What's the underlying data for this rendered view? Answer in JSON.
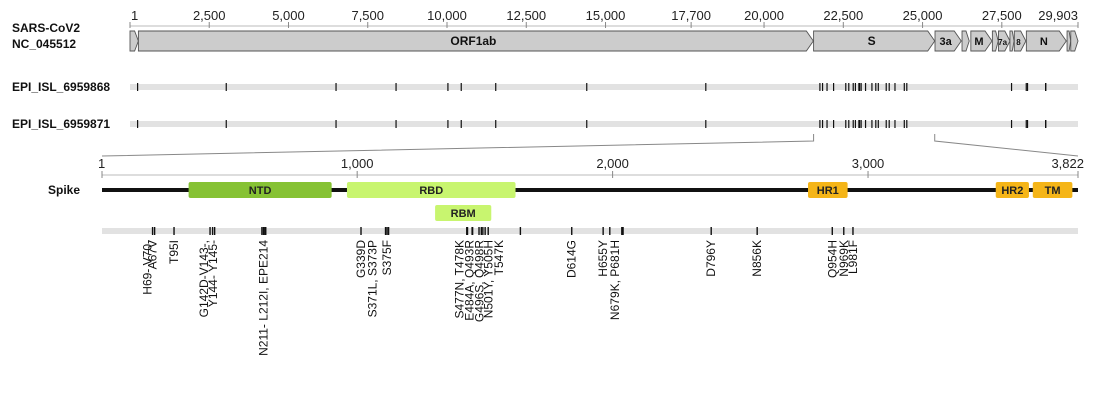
{
  "genome": {
    "labels": [
      "SARS-CoV2",
      "NC_045512"
    ],
    "ticks": [
      {
        "pos": 1,
        "label": "1"
      },
      {
        "pos": 2500,
        "label": "2,500"
      },
      {
        "pos": 5000,
        "label": "5,000"
      },
      {
        "pos": 7500,
        "label": "7,500"
      },
      {
        "pos": 10000,
        "label": "10,000"
      },
      {
        "pos": 12500,
        "label": "12,500"
      },
      {
        "pos": 15000,
        "label": "15,000"
      },
      {
        "pos": 17700,
        "label": "17,700"
      },
      {
        "pos": 20000,
        "label": "20,000"
      },
      {
        "pos": 22500,
        "label": "22,500"
      },
      {
        "pos": 25000,
        "label": "25,000"
      },
      {
        "pos": 27500,
        "label": "27,500"
      },
      {
        "pos": 29903,
        "label": "29,903"
      }
    ],
    "length": 29903,
    "genes": [
      {
        "name": "",
        "start": 1,
        "end": 265
      },
      {
        "name": "ORF1ab",
        "start": 266,
        "end": 21555
      },
      {
        "name": "S",
        "start": 21563,
        "end": 25384
      },
      {
        "name": "3a",
        "start": 25393,
        "end": 26220
      },
      {
        "name": "",
        "start": 26245,
        "end": 26472
      },
      {
        "name": "M",
        "start": 26523,
        "end": 27191
      },
      {
        "name": "",
        "start": 27202,
        "end": 27387
      },
      {
        "name": "7a",
        "start": 27394,
        "end": 27759
      },
      {
        "name": "",
        "start": 27756,
        "end": 27887
      },
      {
        "name": "8",
        "start": 27894,
        "end": 28259
      },
      {
        "name": "N",
        "start": 28274,
        "end": 29533
      },
      {
        "name": "",
        "start": 29558,
        "end": 29674
      },
      {
        "name": "",
        "start": 29675,
        "end": 29903
      }
    ]
  },
  "samples": [
    {
      "name": "EPI_ISL_6959868",
      "mutations": [
        241,
        3037,
        6500,
        8393,
        10029,
        10449,
        11537,
        14408,
        18163,
        21762,
        21846,
        21987,
        22194,
        22578,
        22673,
        22813,
        22882,
        22992,
        23013,
        23063,
        23202,
        23403,
        23525,
        23604,
        23854,
        23948,
        24130,
        24424,
        24503,
        27807,
        28271,
        28881,
        28882,
        28883,
        28311
      ]
    },
    {
      "name": "EPI_ISL_6959871",
      "mutations": [
        241,
        3037,
        6500,
        8393,
        10029,
        10449,
        11537,
        14408,
        18163,
        21762,
        21846,
        21987,
        22194,
        22578,
        22673,
        22813,
        22882,
        22992,
        23013,
        23063,
        23202,
        23403,
        23525,
        23604,
        23854,
        23948,
        24130,
        24424,
        24503,
        27807,
        28271,
        28881,
        28882,
        28883,
        28311
      ]
    }
  ],
  "spike": {
    "label": "Spike",
    "length": 3822,
    "ticks": [
      {
        "pos": 1,
        "label": "1"
      },
      {
        "pos": 1000,
        "label": "1,000"
      },
      {
        "pos": 2000,
        "label": "2,000"
      },
      {
        "pos": 3000,
        "label": "3,000"
      },
      {
        "pos": 3822,
        "label": "3,822"
      }
    ],
    "domains": [
      {
        "name": "NTD",
        "start": 340,
        "end": 900,
        "color": "#86c234",
        "row": 0
      },
      {
        "name": "RBD",
        "start": 960,
        "end": 1620,
        "color": "#c8f56f",
        "row": 0
      },
      {
        "name": "RBM",
        "start": 1305,
        "end": 1525,
        "color": "#c8f56f",
        "row": 1
      },
      {
        "name": "HR1",
        "start": 2765,
        "end": 2920,
        "color": "#f5b518",
        "row": 0
      },
      {
        "name": "HR2",
        "start": 3500,
        "end": 3630,
        "color": "#f5b518",
        "row": 0
      },
      {
        "name": "TM",
        "start": 3645,
        "end": 3800,
        "color": "#f5b518",
        "row": 0
      }
    ],
    "mutation_ticks": [
      199,
      207,
      283,
      424,
      434,
      442,
      627,
      633,
      636,
      641,
      642,
      1015,
      1111,
      1117,
      1123,
      1429,
      1432,
      1450,
      1452,
      1477,
      1486,
      1492,
      1501,
      1513,
      1639,
      1840,
      1963,
      1989,
      2036,
      2041,
      2386,
      2566,
      2860,
      2905,
      2941
    ],
    "mutation_labels": [
      {
        "text": "A67V",
        "pos": 199
      },
      {
        "text": "H69- V70-",
        "pos": 180
      },
      {
        "text": "T95I",
        "pos": 283
      },
      {
        "text": "G142D-V143-,",
        "pos": 400
      },
      {
        "text": "Y144- Y145-",
        "pos": 436
      },
      {
        "text": "N211- L212I, EPE214",
        "pos": 633
      },
      {
        "text": "G339D",
        "pos": 1015
      },
      {
        "text": "S371L, S373P",
        "pos": 1060
      },
      {
        "text": "S375F",
        "pos": 1117
      },
      {
        "text": "S477N, T478K",
        "pos": 1400
      },
      {
        "text": "E484A, Q493R",
        "pos": 1440
      },
      {
        "text": "G496S, Q498R",
        "pos": 1478
      },
      {
        "text": "N501Y, Y505H",
        "pos": 1515
      },
      {
        "text": "T547K",
        "pos": 1555
      },
      {
        "text": "D614G",
        "pos": 1840
      },
      {
        "text": "H655Y",
        "pos": 1963
      },
      {
        "text": "N679K, P681H",
        "pos": 2010
      },
      {
        "text": "D796Y",
        "pos": 2386
      },
      {
        "text": "N856K",
        "pos": 2566
      },
      {
        "text": "Q954H",
        "pos": 2860
      },
      {
        "text": "N969K",
        "pos": 2905
      },
      {
        "text": "L981F",
        "pos": 2941
      }
    ]
  }
}
